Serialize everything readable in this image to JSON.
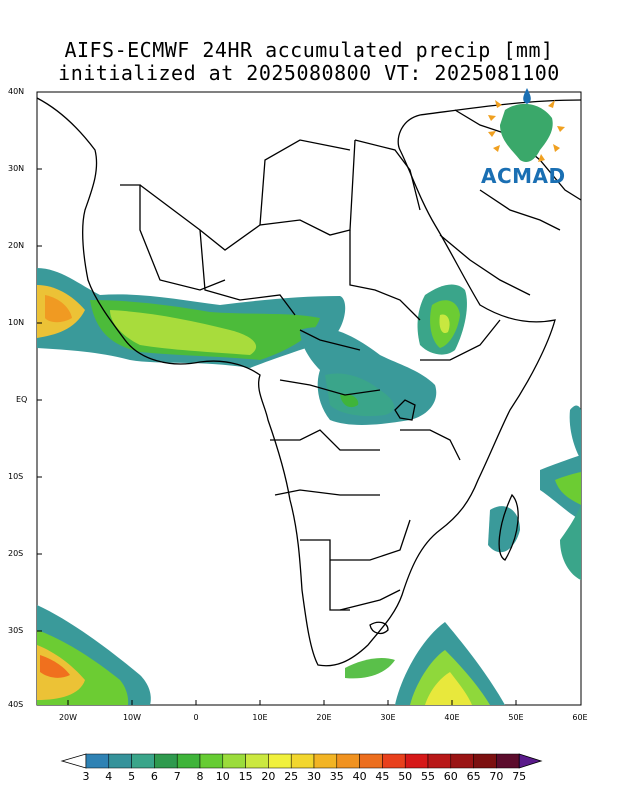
{
  "title": {
    "line1": "AIFS-ECMWF 24HR accumulated precip [mm]",
    "line2": "initialized at 2025080800 VT: 2025081100"
  },
  "axes": {
    "lat_labels": [
      "40N",
      "30N",
      "20N",
      "10N",
      "EQ",
      "10S",
      "20S",
      "30S",
      "40S"
    ],
    "lon_labels": [
      "20W",
      "10W",
      "0",
      "10E",
      "20E",
      "30E",
      "40E",
      "50E",
      "60E"
    ]
  },
  "logo": {
    "text": "ACMAD"
  },
  "colorbar": {
    "labels": [
      "3",
      "4",
      "5",
      "6",
      "7",
      "8",
      "10",
      "15",
      "20",
      "25",
      "30",
      "35",
      "40",
      "45",
      "50",
      "55",
      "60",
      "65",
      "70",
      "75"
    ],
    "colors": [
      "#2f82b4",
      "#35929a",
      "#3aa58a",
      "#2f9a4e",
      "#3fb43a",
      "#66cc33",
      "#9bdc3b",
      "#cbe840",
      "#f0f03c",
      "#f2d62e",
      "#f2b424",
      "#f09220",
      "#ec6e1e",
      "#e8401c",
      "#d61818",
      "#b81818",
      "#9a1414",
      "#7c1010",
      "#5c0c2c",
      "#5a1a8a"
    ]
  }
}
